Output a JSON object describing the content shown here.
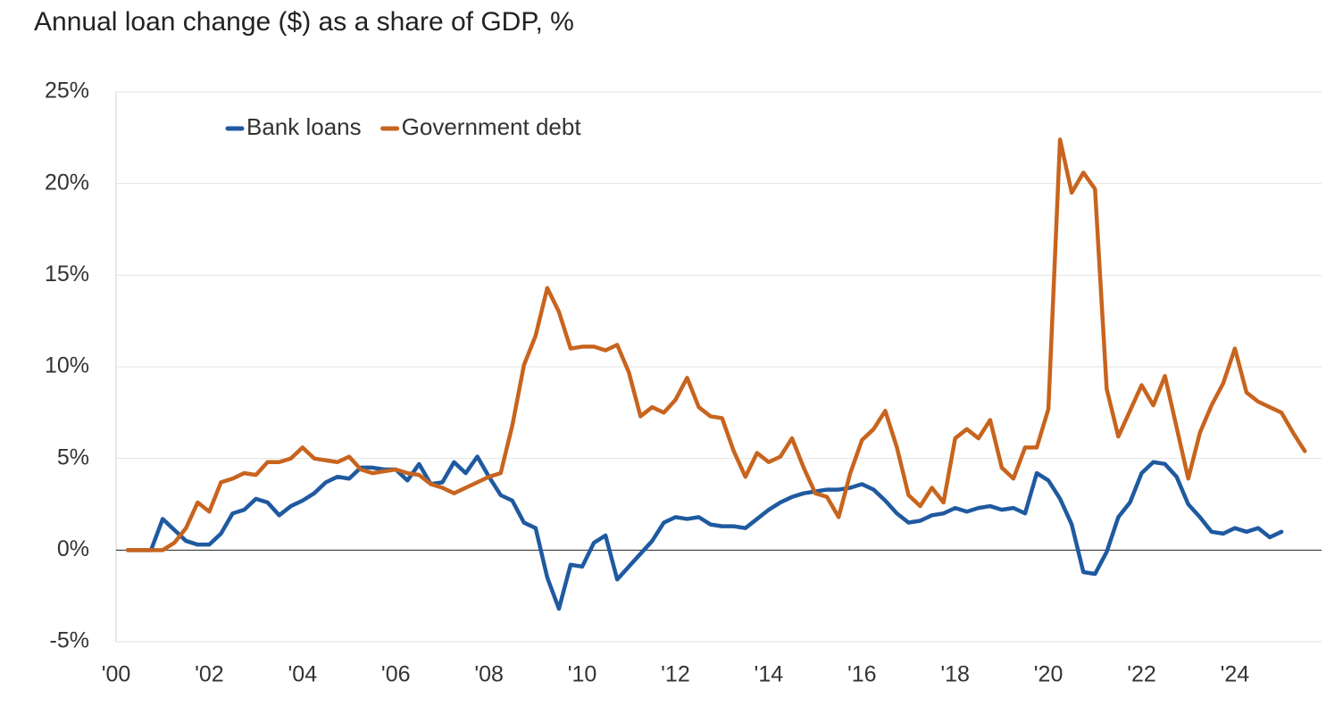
{
  "chart_data": {
    "type": "line",
    "title": "Annual loan change ($) as a share of GDP, %",
    "x": [
      2000.25,
      2000.5,
      2000.75,
      2001,
      2001.25,
      2001.5,
      2001.75,
      2002,
      2002.25,
      2002.5,
      2002.75,
      2003,
      2003.25,
      2003.5,
      2003.75,
      2004,
      2004.25,
      2004.5,
      2004.75,
      2005,
      2005.25,
      2005.5,
      2005.75,
      2006,
      2006.25,
      2006.5,
      2006.75,
      2007,
      2007.25,
      2007.5,
      2007.75,
      2008,
      2008.25,
      2008.5,
      2008.75,
      2009,
      2009.25,
      2009.5,
      2009.75,
      2010,
      2010.25,
      2010.5,
      2010.75,
      2011,
      2011.25,
      2011.5,
      2011.75,
      2012,
      2012.25,
      2012.5,
      2012.75,
      2013,
      2013.25,
      2013.5,
      2013.75,
      2014,
      2014.25,
      2014.5,
      2014.75,
      2015,
      2015.25,
      2015.5,
      2015.75,
      2016,
      2016.25,
      2016.5,
      2016.75,
      2017,
      2017.25,
      2017.5,
      2017.75,
      2018,
      2018.25,
      2018.5,
      2018.75,
      2019,
      2019.25,
      2019.5,
      2019.75,
      2020,
      2020.25,
      2020.5,
      2020.75,
      2021,
      2021.25,
      2021.5,
      2021.75,
      2022,
      2022.25,
      2022.5,
      2022.75,
      2023,
      2023.25,
      2023.5,
      2023.75,
      2024,
      2024.25,
      2024.5,
      2024.75,
      2025,
      2025.25,
      2025.5
    ],
    "series": [
      {
        "name": "Bank loans",
        "color": "#1f5aa0",
        "values": [
          0,
          0,
          0,
          1.7,
          1.1,
          0.5,
          0.3,
          0.3,
          0.9,
          2.0,
          2.2,
          2.8,
          2.6,
          1.9,
          2.4,
          2.7,
          3.1,
          3.7,
          4.0,
          3.9,
          4.5,
          4.5,
          4.4,
          4.4,
          3.8,
          4.7,
          3.6,
          3.7,
          4.8,
          4.2,
          5.1,
          4.0,
          3.0,
          2.7,
          1.5,
          1.2,
          -1.5,
          -3.2,
          -0.8,
          -0.9,
          0.4,
          0.8,
          -1.6,
          -0.9,
          -0.2,
          0.5,
          1.5,
          1.8,
          1.7,
          1.8,
          1.4,
          1.3,
          1.3,
          1.2,
          1.7,
          2.2,
          2.6,
          2.9,
          3.1,
          3.2,
          3.3,
          3.3,
          3.4,
          3.6,
          3.3,
          2.7,
          2.0,
          1.5,
          1.6,
          1.9,
          2.0,
          2.3,
          2.1,
          2.3,
          2.4,
          2.2,
          2.3,
          2.0,
          4.2,
          3.8,
          2.8,
          1.4,
          -1.2,
          -1.3,
          -0.1,
          1.8,
          2.6,
          4.2,
          4.8,
          4.7,
          4.0,
          2.5,
          1.8,
          1.0,
          0.9,
          1.2,
          1.0,
          1.2,
          0.7,
          1.0,
          null,
          null
        ]
      },
      {
        "name": "Government debt",
        "color": "#c8641e",
        "values": [
          0,
          0,
          0,
          0,
          0.4,
          1.2,
          2.6,
          2.1,
          3.7,
          3.9,
          4.2,
          4.1,
          4.8,
          4.8,
          5.0,
          5.6,
          5.0,
          4.9,
          4.8,
          5.1,
          4.4,
          4.2,
          4.3,
          4.4,
          4.2,
          4.1,
          3.6,
          3.4,
          3.1,
          3.4,
          3.7,
          4.0,
          4.2,
          6.8,
          10.1,
          11.7,
          14.3,
          13.0,
          11.0,
          11.1,
          11.1,
          10.9,
          11.2,
          9.7,
          7.3,
          7.8,
          7.5,
          8.2,
          9.4,
          7.8,
          7.3,
          7.2,
          5.4,
          4.0,
          5.3,
          4.8,
          5.1,
          6.1,
          4.5,
          3.1,
          2.9,
          1.8,
          4.2,
          6.0,
          6.6,
          7.6,
          5.6,
          3.0,
          2.4,
          3.4,
          2.6,
          6.1,
          6.6,
          6.1,
          7.1,
          4.5,
          3.9,
          5.6,
          5.6,
          7.7,
          22.4,
          19.5,
          20.6,
          19.7,
          8.8,
          6.2,
          7.6,
          9.0,
          7.9,
          9.5,
          6.7,
          3.9,
          6.4,
          7.9,
          9.1,
          11.0,
          8.6,
          8.1,
          7.8,
          7.5,
          6.4,
          5.4
        ]
      }
    ],
    "xlim": [
      2000,
      2025.86
    ],
    "xticks": [
      {
        "value": 2000,
        "label": "'00"
      },
      {
        "value": 2002,
        "label": "'02"
      },
      {
        "value": 2004,
        "label": "'04"
      },
      {
        "value": 2006,
        "label": "'06"
      },
      {
        "value": 2008,
        "label": "'08"
      },
      {
        "value": 2010,
        "label": "'10"
      },
      {
        "value": 2012,
        "label": "'12"
      },
      {
        "value": 2014,
        "label": "'14"
      },
      {
        "value": 2016,
        "label": "'16"
      },
      {
        "value": 2018,
        "label": "'18"
      },
      {
        "value": 2020,
        "label": "'20"
      },
      {
        "value": 2022,
        "label": "'22"
      },
      {
        "value": 2024,
        "label": "'24"
      }
    ],
    "ylim": [
      -5,
      25
    ],
    "yticks": [
      {
        "value": -5,
        "label": "-5%"
      },
      {
        "value": 0,
        "label": "0%"
      },
      {
        "value": 5,
        "label": "5%"
      },
      {
        "value": 10,
        "label": "10%"
      },
      {
        "value": 15,
        "label": "15%"
      },
      {
        "value": 20,
        "label": "20%"
      },
      {
        "value": 25,
        "label": "25%"
      }
    ],
    "grid": true,
    "legend": "top-left"
  }
}
